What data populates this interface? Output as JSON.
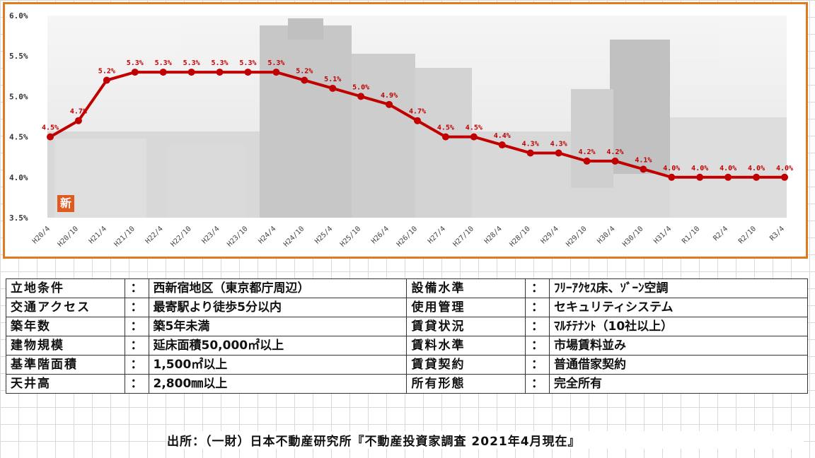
{
  "chart_data": {
    "type": "line",
    "title": "",
    "xlabel": "",
    "ylabel": "",
    "ylim": [
      3.5,
      6.0
    ],
    "yticks": [
      "3.5%",
      "4.0%",
      "4.5%",
      "5.0%",
      "5.5%",
      "6.0%"
    ],
    "categories": [
      "H20/4",
      "H20/10",
      "H21/4",
      "H21/10",
      "H22/4",
      "H22/10",
      "H23/4",
      "H23/10",
      "H24/4",
      "H24/10",
      "H25/4",
      "H25/10",
      "H26/4",
      "H26/10",
      "H27/4",
      "H27/10",
      "H28/4",
      "H28/10",
      "H29/4",
      "H29/10",
      "H30/4",
      "H30/10",
      "H31/4",
      "R1/10",
      "R2/4",
      "R2/10",
      "R3/4"
    ],
    "values": [
      4.5,
      4.7,
      5.2,
      5.3,
      5.3,
      5.3,
      5.3,
      5.3,
      5.3,
      5.2,
      5.1,
      5.0,
      4.9,
      4.7,
      4.5,
      4.5,
      4.4,
      4.3,
      4.3,
      4.2,
      4.2,
      4.1,
      4.0,
      4.0,
      4.0,
      4.0,
      4.0
    ],
    "data_labels": [
      "4.5%",
      "4.7%",
      "5.2%",
      "5.3%",
      "5.3%",
      "5.3%",
      "5.3%",
      "5.3%",
      "5.3%",
      "5.2%",
      "5.1%",
      "5.0%",
      "4.9%",
      "4.7%",
      "4.5%",
      "4.5%",
      "4.4%",
      "4.3%",
      "4.3%",
      "4.2%",
      "4.2%",
      "4.1%",
      "4.0%",
      "4.0%",
      "4.0%",
      "4.0%",
      "4.0%"
    ],
    "grid": false,
    "colors": {
      "line": "#c00000",
      "frame": "#e07a1f"
    }
  },
  "badge": "新",
  "specs": [
    {
      "left_label": "立地条件",
      "left_value": "西新宿地区（東京都庁周辺）",
      "right_label": "設備水準",
      "right_value": "ﾌﾘｰｱｸｾｽ床、ｿﾞｰﾝ空調"
    },
    {
      "left_label": "交通アクセス",
      "left_value": "最寄駅より徒歩5分以内",
      "right_label": "使用管理",
      "right_value": "セキュリティシステム"
    },
    {
      "left_label": "築年数",
      "left_value": "築5年未満",
      "right_label": "賃貸状況",
      "right_value": "ﾏﾙﾁﾃﾅﾝﾄ（10社以上）"
    },
    {
      "left_label": "建物規模",
      "left_value": "延床面積50,000㎡以上",
      "right_label": "賃料水準",
      "right_value": "市場賃料並み"
    },
    {
      "left_label": "基準階面積",
      "left_value": "1,500㎡以上",
      "right_label": "賃貸契約",
      "right_value": "普通借家契約"
    },
    {
      "left_label": "天井高",
      "left_value": "2,800㎜以上",
      "right_label": "所有形態",
      "right_value": "完全所有"
    }
  ],
  "colon": "：",
  "source": "出所：（一財）日本不動産研究所『不動産投資家調査 2021年4月現在』"
}
